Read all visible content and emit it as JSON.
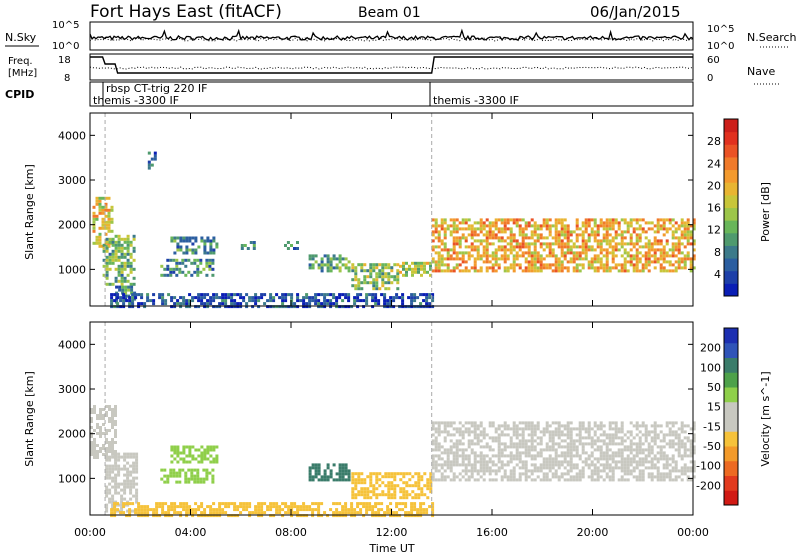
{
  "header": {
    "station": "Fort Hays East (fitACF)",
    "beam": "Beam 01",
    "date": "06/Jan/2015"
  },
  "top_panels": {
    "noise": {
      "left_label": "N.Sky",
      "right_label": "N.Search",
      "left_ticks": [
        "10^5",
        "10^0"
      ],
      "right_ticks": [
        "10^5",
        "10^0"
      ]
    },
    "freq": {
      "left_label_line1": "Freq.",
      "left_label_line2": "[MHz]",
      "right_label": "Nave",
      "left_ticks": [
        "18",
        "8"
      ],
      "right_ticks": [
        "60",
        "0"
      ]
    },
    "cpid": {
      "label": "CPID",
      "segments": [
        {
          "name": "themis -3300 IF",
          "start": 0.0,
          "end": 13.6
        },
        {
          "name": "rbsp CT-trig 220 IF",
          "start": 0.6,
          "end": 1.6
        },
        {
          "name": "themis -3300 IF",
          "start": 13.6,
          "end": 24.0
        }
      ]
    }
  },
  "x_axis": {
    "label": "Time UT",
    "ticks": [
      "00:00",
      "04:00",
      "08:00",
      "12:00",
      "16:00",
      "20:00",
      "00:00"
    ],
    "range": [
      0,
      24
    ]
  },
  "chart_data": [
    {
      "type": "heatmap",
      "parameter": "power",
      "ylabel": "Slant Range [km]",
      "ylim": [
        180,
        4500
      ],
      "yticks": [
        1000,
        2000,
        3000,
        4000
      ],
      "colorbar": {
        "label": "Power [dB]",
        "ticks": [
          "4",
          "8",
          "12",
          "16",
          "20",
          "24",
          "28"
        ],
        "colors": [
          "#0a1eb5",
          "#1d3fa8",
          "#2b5ea0",
          "#3c7a8a",
          "#4f9a6e",
          "#69b65a",
          "#9dc64a",
          "#c8c63a",
          "#e8b532",
          "#f39a2e",
          "#f07a2a",
          "#ea5225",
          "#e1301e",
          "#cc1f1a"
        ]
      },
      "regions": [
        {
          "t0": 0.1,
          "t1": 0.9,
          "r0": 1550,
          "r1": 2650,
          "v": 0.55
        },
        {
          "t0": 0.5,
          "t1": 1.8,
          "r0": 700,
          "r1": 1800,
          "v": 0.35
        },
        {
          "t0": 1.0,
          "t1": 1.8,
          "r0": 300,
          "r1": 650,
          "v": 0.25
        },
        {
          "t0": 2.3,
          "t1": 2.6,
          "r0": 3300,
          "r1": 3650,
          "v": 0.2
        },
        {
          "t0": 3.2,
          "t1": 5.0,
          "r0": 1400,
          "r1": 1800,
          "v": 0.25
        },
        {
          "t0": 2.8,
          "t1": 4.9,
          "r0": 900,
          "r1": 1250,
          "v": 0.25
        },
        {
          "t0": 6.0,
          "t1": 6.5,
          "r0": 1500,
          "r1": 1650,
          "v": 0.2
        },
        {
          "t0": 7.6,
          "t1": 8.3,
          "r0": 1500,
          "r1": 1650,
          "v": 0.2
        },
        {
          "t0": 8.7,
          "t1": 10.3,
          "r0": 1000,
          "r1": 1400,
          "v": 0.3
        },
        {
          "t0": 10.4,
          "t1": 12.3,
          "r0": 600,
          "r1": 1200,
          "v": 0.4
        },
        {
          "t0": 12.3,
          "t1": 13.6,
          "r0": 900,
          "r1": 1200,
          "v": 0.45
        },
        {
          "t0": 0.8,
          "t1": 13.6,
          "r0": 200,
          "r1": 500,
          "v": 0.1
        },
        {
          "t0": 13.6,
          "t1": 24.0,
          "r0": 1000,
          "r1": 2200,
          "v": 0.6
        }
      ]
    },
    {
      "type": "heatmap",
      "parameter": "velocity",
      "ylabel": "Slant Range [km]",
      "ylim": [
        180,
        4500
      ],
      "yticks": [
        1000,
        2000,
        3000,
        4000
      ],
      "colorbar": {
        "label": "Velocity [m s^-1]",
        "ticks": [
          "200",
          "100",
          "50",
          "15",
          "-15",
          "-50",
          "-100",
          "-200"
        ],
        "colors": [
          "#1c2fb1",
          "#2f54b8",
          "#3a7c6a",
          "#4ea14a",
          "#8fcf4a",
          "#c8c8c0",
          "#c8c8c0",
          "#f6c23a",
          "#f39a2a",
          "#ed6a22",
          "#e23a1e",
          "#d11a14"
        ]
      },
      "regions": [
        {
          "t0": 0.0,
          "t1": 1.0,
          "r0": 1500,
          "r1": 2700,
          "v": "ground"
        },
        {
          "t0": 0.6,
          "t1": 1.8,
          "r0": 300,
          "r1": 1600,
          "v": "ground"
        },
        {
          "t0": 3.2,
          "t1": 5.0,
          "r0": 1400,
          "r1": 1750,
          "v": "pos50"
        },
        {
          "t0": 2.8,
          "t1": 4.9,
          "r0": 950,
          "r1": 1250,
          "v": "pos50"
        },
        {
          "t0": 8.7,
          "t1": 10.3,
          "r0": 1000,
          "r1": 1400,
          "v": "pos100"
        },
        {
          "t0": 10.4,
          "t1": 13.6,
          "r0": 600,
          "r1": 1200,
          "v": "neg50"
        },
        {
          "t0": 0.8,
          "t1": 13.6,
          "r0": 200,
          "r1": 500,
          "v": "neg50"
        },
        {
          "t0": 13.6,
          "t1": 24.0,
          "r0": 1000,
          "r1": 2300,
          "v": "ground"
        }
      ]
    }
  ]
}
